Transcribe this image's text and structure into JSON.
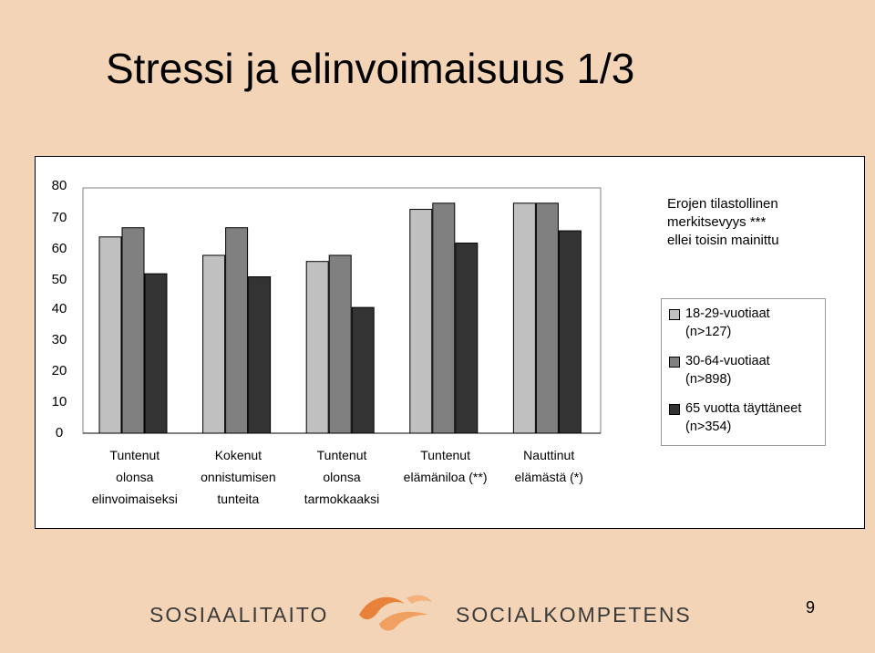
{
  "slide": {
    "title": "Stressi ja elinvoimaisuus 1/3",
    "page_number": "9",
    "background_color": "#f3d4b6"
  },
  "note": {
    "line1": "Erojen tilastollinen",
    "line2": "merkitsevyys ***",
    "line3": "ellei toisin mainittu"
  },
  "footer": {
    "logo_left": "SOSIAALITAITO",
    "logo_right": "SOCIALKOMPETENS",
    "logo_mark": "swirl-logo-icon",
    "logo_color": "#e8823a"
  },
  "chart_data": {
    "type": "bar",
    "categories": [
      [
        "Tuntenut",
        "olonsa",
        "elinvoimaiseksi"
      ],
      [
        "Kokenut",
        "onnistumisen",
        "tunteita"
      ],
      [
        "Tuntenut",
        "olonsa",
        "tarmokkaaksi"
      ],
      [
        "Tuntenut",
        "elämäniloa (**)"
      ],
      [
        "Nauttinut",
        "elämästä (*)"
      ]
    ],
    "series": [
      {
        "name": "18-29-vuotiaat (n>127)",
        "legend_lines": [
          "18-29-vuotiaat",
          "(n>127)"
        ],
        "color": "#c0c0c0",
        "values": [
          64,
          58,
          56,
          73,
          75
        ]
      },
      {
        "name": "30-64-vuotiaat (n>898)",
        "legend_lines": [
          "30-64-vuotiaat",
          "(n>898)"
        ],
        "color": "#808080",
        "values": [
          67,
          67,
          58,
          75,
          75
        ]
      },
      {
        "name": "65 vuotta täyttäneet (n>354)",
        "legend_lines": [
          "65 vuotta täyttäneet",
          "(n>354)"
        ],
        "color": "#333333",
        "values": [
          52,
          51,
          41,
          62,
          66
        ]
      }
    ],
    "yticks": [
      0,
      10,
      20,
      30,
      40,
      50,
      60,
      70,
      80
    ],
    "ylim": [
      0,
      80
    ],
    "grid": false,
    "legend_position": "right"
  }
}
